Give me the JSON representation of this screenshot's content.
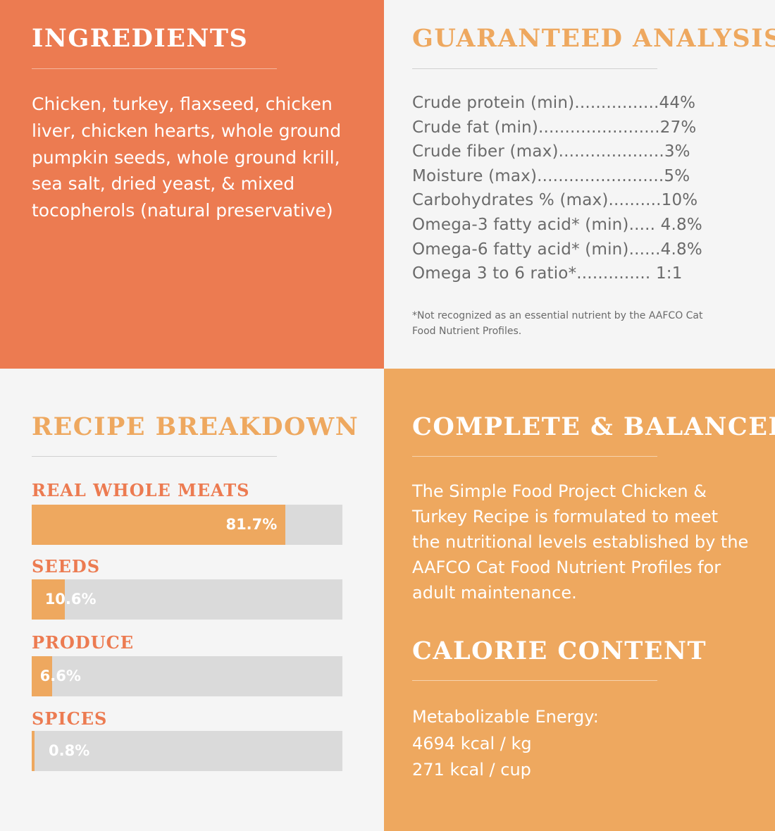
{
  "ingredients": {
    "title": "INGREDIENTS",
    "text": "Chicken, turkey, flaxseed, chicken liver, chicken hearts, whole ground pumpkin seeds, whole ground krill, sea salt, dried yeast, & mixed tocopherols (natural preservative)"
  },
  "analysis": {
    "title": "GUARANTEED ANALYSIS",
    "rows": [
      "Crude protein (min)................44%",
      "Crude fat (min).......................27%",
      "Crude fiber (max)....................3%",
      "Moisture (max)........................5%",
      "Carbohydrates % (max)..........10%",
      "Omega-3 fatty acid* (min)..... 4.8%",
      "Omega-6 fatty acid* (min)......4.8%",
      "Omega 3 to 6 ratio*.............. 1:1"
    ],
    "footnote": "*Not recognized as an essential nutrient by the AAFCO Cat Food Nutrient Profiles."
  },
  "recipe": {
    "title": "RECIPE BREAKDOWN",
    "bars": [
      {
        "label": "REAL WHOLE MEATS",
        "value": 81.7,
        "display": "81.7%"
      },
      {
        "label": "SEEDS",
        "value": 10.6,
        "display": "10.6%"
      },
      {
        "label": "PRODUCE",
        "value": 6.6,
        "display": "6.6%"
      },
      {
        "label": "SPICES",
        "value": 0.8,
        "display": "0.8%"
      }
    ]
  },
  "complete": {
    "title": "COMPLETE & BALANCED",
    "text": "The Simple Food Project Chicken & Turkey Recipe is formulated to meet the nutritional levels established by the AAFCO Cat Food Nutrient Profiles for adult maintenance."
  },
  "calorie": {
    "title": "CALORIE CONTENT",
    "lines": [
      "Metabolizable Energy:",
      "4694 kcal / kg",
      "271 kcal / cup"
    ]
  },
  "colors": {
    "coral": "#ec7b51",
    "orange": "#eea85f",
    "light_gray": "#f5f5f5",
    "bar_track": "#dadada",
    "text_gray": "#6a6a6a"
  }
}
